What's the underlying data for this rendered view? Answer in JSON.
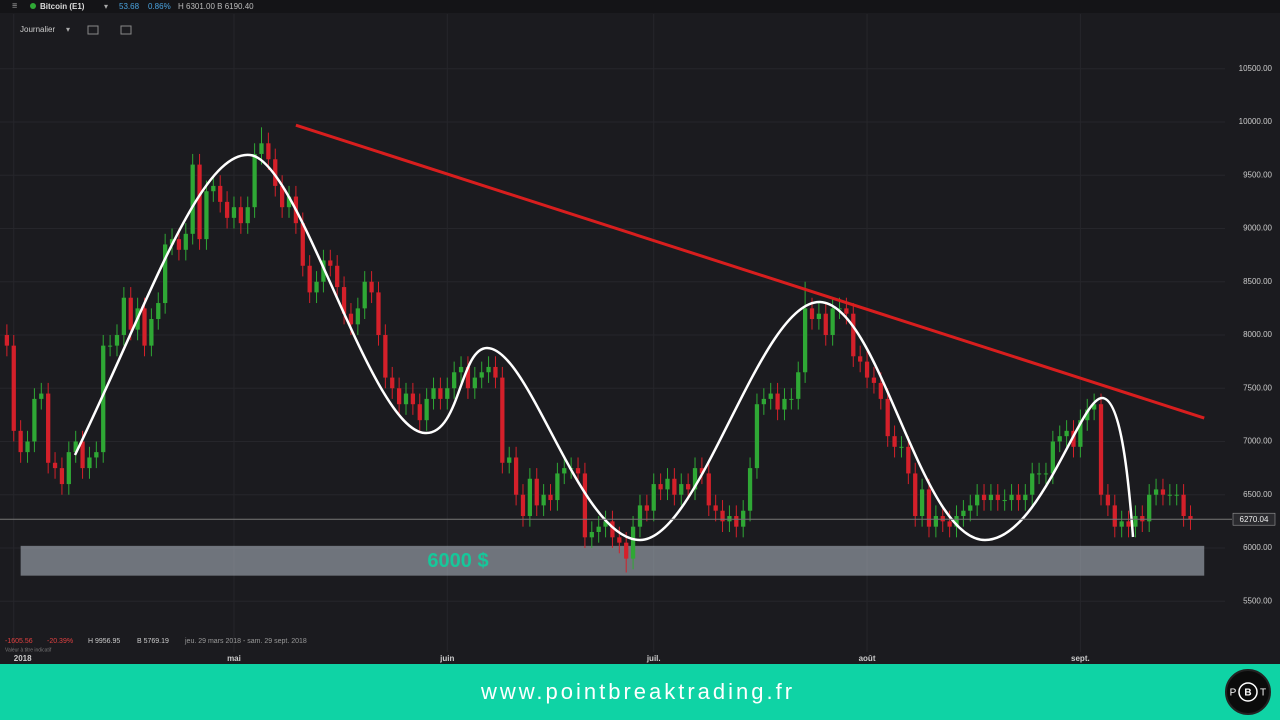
{
  "header": {
    "symbol": "Bitcoin (E1)",
    "change": "53.68",
    "change_pct": "0.86%",
    "hl": "H 6301.00 B 6190.40",
    "interval": "Journalier"
  },
  "stats": {
    "change": "-1605.56",
    "change_pct": "-20.39%",
    "high": "H 9956.95",
    "low": "B 5769.19",
    "range": "jeu. 29 mars 2018 - sam. 29 sept. 2018",
    "note": "Valeur à titre indicatif"
  },
  "footer": {
    "url": "www.pointbreaktrading.fr",
    "logo_left": "P",
    "logo_center": "B",
    "logo_right": "T"
  },
  "chart_data": {
    "type": "candlestick",
    "up_color": "#2fa835",
    "down_color": "#d4202a",
    "grid": true,
    "xlim": [
      87,
      264
    ],
    "xticks": [
      {
        "value": 89,
        "label": "2018"
      },
      {
        "value": 121,
        "label": "mai"
      },
      {
        "value": 152,
        "label": "juin"
      },
      {
        "value": 182,
        "label": "juil."
      },
      {
        "value": 213,
        "label": "août"
      },
      {
        "value": 244,
        "label": "sept."
      }
    ],
    "ylim": [
      5042,
      10770
    ],
    "yticks": [
      {
        "value": 5500,
        "label": "5500.00"
      },
      {
        "value": 6000,
        "label": "6000.00"
      },
      {
        "value": 6500,
        "label": "6500.00"
      },
      {
        "value": 7000,
        "label": "7000.00"
      },
      {
        "value": 7500,
        "label": "7500.00"
      },
      {
        "value": 8000,
        "label": "8000.00"
      },
      {
        "value": 8500,
        "label": "8500.00"
      },
      {
        "value": 9000,
        "label": "9000.00"
      },
      {
        "value": 9500,
        "label": "9500.00"
      },
      {
        "value": 10000,
        "label": "10000.00"
      },
      {
        "value": 10500,
        "label": "10500.00"
      }
    ],
    "last_price": 6270.04,
    "trendline": {
      "x": [
        130,
        262
      ],
      "y": [
        9970,
        7220
      ],
      "color": "#d81e1e"
    },
    "zone": {
      "x": [
        90,
        262
      ],
      "low": 5740,
      "high": 6020,
      "label": "6000 $",
      "color": "#b4bec8"
    },
    "x": [
      88,
      89,
      90,
      91,
      92,
      93,
      94,
      95,
      96,
      97,
      98,
      99,
      100,
      101,
      102,
      103,
      104,
      105,
      106,
      107,
      108,
      109,
      110,
      111,
      112,
      113,
      114,
      115,
      116,
      117,
      118,
      119,
      120,
      121,
      122,
      123,
      124,
      125,
      126,
      127,
      128,
      129,
      130,
      131,
      132,
      133,
      134,
      135,
      136,
      137,
      138,
      139,
      140,
      141,
      142,
      143,
      144,
      145,
      146,
      147,
      148,
      149,
      150,
      151,
      152,
      153,
      154,
      155,
      156,
      157,
      158,
      159,
      160,
      161,
      162,
      163,
      164,
      165,
      166,
      167,
      168,
      169,
      170,
      171,
      172,
      173,
      174,
      175,
      176,
      177,
      178,
      179,
      180,
      181,
      182,
      183,
      184,
      185,
      186,
      187,
      188,
      189,
      190,
      191,
      192,
      193,
      194,
      195,
      196,
      197,
      198,
      199,
      200,
      201,
      202,
      203,
      204,
      205,
      206,
      207,
      208,
      209,
      210,
      211,
      212,
      213,
      214,
      215,
      216,
      217,
      218,
      219,
      220,
      221,
      222,
      223,
      224,
      225,
      226,
      227,
      228,
      229,
      230,
      231,
      232,
      233,
      234,
      235,
      236,
      237,
      238,
      239,
      240,
      241,
      242,
      243,
      244,
      245,
      246,
      247,
      248,
      249,
      250,
      251,
      252,
      253,
      254,
      255,
      256,
      257,
      258,
      259,
      260
    ],
    "open": [
      8000,
      7900,
      7100,
      6900,
      7000,
      7400,
      7450,
      6800,
      6750,
      6600,
      6900,
      7000,
      6750,
      6850,
      6900,
      7900,
      7900,
      8000,
      8350,
      8050,
      8250,
      7900,
      8150,
      8300,
      8850,
      8900,
      8800,
      8950,
      9600,
      8900,
      9350,
      9400,
      9250,
      9100,
      9200,
      9050,
      9200,
      9700,
      9800,
      9650,
      9400,
      9200,
      9300,
      9050,
      8650,
      8400,
      8500,
      8700,
      8650,
      8450,
      8200,
      8100,
      8250,
      8500,
      8400,
      8000,
      7600,
      7500,
      7350,
      7450,
      7350,
      7200,
      7400,
      7500,
      7400,
      7500,
      7650,
      7700,
      7500,
      7600,
      7650,
      7700,
      7600,
      6800,
      6850,
      6500,
      6300,
      6650,
      6400,
      6500,
      6450,
      6700,
      6750,
      6750,
      6700,
      6100,
      6150,
      6200,
      6250,
      6100,
      6050,
      5900,
      6200,
      6400,
      6350,
      6600,
      6550,
      6650,
      6500,
      6600,
      6550,
      6750,
      6700,
      6400,
      6350,
      6250,
      6300,
      6200,
      6350,
      6750,
      7350,
      7400,
      7450,
      7300,
      7400,
      7400,
      7650,
      8250,
      8150,
      8200,
      8000,
      8250,
      8250,
      8200,
      7800,
      7750,
      7600,
      7550,
      7400,
      7050,
      6950,
      6950,
      6700,
      6300,
      6550,
      6200,
      6300,
      6250,
      6200,
      6300,
      6350,
      6400,
      6500,
      6450,
      6500,
      6450,
      6450,
      6500,
      6450,
      6500,
      6700,
      6700,
      6700,
      7000,
      7050,
      7100,
      6950,
      7200,
      7300,
      7350,
      6500,
      6400,
      6200,
      6250,
      6200,
      6300,
      6250,
      6500,
      6550,
      6500,
      6500,
      6500,
      6300
    ],
    "high": [
      8100,
      8000,
      7200,
      7100,
      7500,
      7550,
      7550,
      6900,
      6850,
      7000,
      7100,
      7100,
      6950,
      7000,
      8000,
      8000,
      8100,
      8450,
      8450,
      8350,
      8350,
      8250,
      8400,
      8950,
      9000,
      9000,
      9050,
      9700,
      9700,
      9450,
      9500,
      9500,
      9350,
      9300,
      9300,
      9300,
      9800,
      9950,
      9900,
      9750,
      9500,
      9400,
      9400,
      9150,
      8750,
      8600,
      8800,
      8800,
      8750,
      8550,
      8300,
      8350,
      8600,
      8600,
      8500,
      8100,
      7700,
      7600,
      7550,
      7550,
      7450,
      7500,
      7600,
      7600,
      7600,
      7750,
      7800,
      7800,
      7700,
      7750,
      7800,
      7800,
      7700,
      6950,
      6950,
      6600,
      6750,
      6750,
      6600,
      6600,
      6800,
      6850,
      6850,
      6850,
      6800,
      6250,
      6300,
      6350,
      6350,
      6200,
      6150,
      6300,
      6500,
      6500,
      6700,
      6700,
      6750,
      6750,
      6700,
      6700,
      6850,
      6850,
      6800,
      6500,
      6450,
      6400,
      6400,
      6450,
      6850,
      7450,
      7500,
      7550,
      7550,
      7500,
      7500,
      7750,
      8500,
      8350,
      8300,
      8300,
      8350,
      8350,
      8350,
      8300,
      7900,
      7850,
      7700,
      7650,
      7500,
      7150,
      7050,
      7050,
      6800,
      6650,
      6650,
      6400,
      6400,
      6350,
      6400,
      6450,
      6500,
      6600,
      6600,
      6600,
      6600,
      6550,
      6600,
      6600,
      6600,
      6800,
      6800,
      6800,
      7100,
      7150,
      7200,
      7200,
      7300,
      7400,
      7450,
      7450,
      6600,
      6500,
      6350,
      6350,
      6400,
      6400,
      6600,
      6650,
      6650,
      6600,
      6600,
      6600,
      6400
    ],
    "low": [
      7800,
      7000,
      6800,
      6800,
      6900,
      7300,
      6700,
      6650,
      6500,
      6500,
      6800,
      6650,
      6650,
      6750,
      6800,
      7800,
      7800,
      7900,
      7950,
      7950,
      7800,
      7800,
      8050,
      8200,
      8750,
      8700,
      8700,
      8850,
      8800,
      8800,
      9250,
      9150,
      9000,
      9000,
      8950,
      8950,
      9100,
      9600,
      9550,
      9300,
      9100,
      9100,
      8950,
      8550,
      8300,
      8300,
      8400,
      8550,
      8350,
      8100,
      8000,
      8000,
      8150,
      8300,
      7900,
      7500,
      7400,
      7250,
      7250,
      7250,
      7100,
      7100,
      7300,
      7300,
      7300,
      7400,
      7550,
      7400,
      7400,
      7500,
      7550,
      7500,
      6700,
      6700,
      6400,
      6200,
      6200,
      6300,
      6300,
      6350,
      6350,
      6600,
      6650,
      6600,
      6000,
      6000,
      6050,
      6100,
      6000,
      5950,
      5770,
      5800,
      6100,
      6250,
      6250,
      6450,
      6450,
      6400,
      6400,
      6450,
      6450,
      6600,
      6300,
      6250,
      6150,
      6150,
      6100,
      6100,
      6250,
      6650,
      7250,
      7300,
      7200,
      7200,
      7300,
      7300,
      7550,
      8050,
      8050,
      7900,
      7900,
      8150,
      8100,
      7700,
      7650,
      7500,
      7450,
      7300,
      6950,
      6850,
      6850,
      6600,
      6200,
      6200,
      6100,
      6100,
      6150,
      6100,
      6100,
      6200,
      6250,
      6300,
      6350,
      6350,
      6350,
      6350,
      6350,
      6350,
      6350,
      6400,
      6600,
      6600,
      6600,
      6900,
      6950,
      6850,
      6850,
      7100,
      7200,
      6400,
      6300,
      6100,
      6100,
      6100,
      6100,
      6150,
      6150,
      6400,
      6400,
      6400,
      6400,
      6200,
      6170
    ],
    "close": [
      7900,
      7100,
      6900,
      7000,
      7400,
      7450,
      6800,
      6750,
      6600,
      6900,
      7000,
      6750,
      6850,
      6900,
      7900,
      7900,
      8000,
      8350,
      8050,
      8250,
      7900,
      8150,
      8300,
      8850,
      8900,
      8800,
      8950,
      9600,
      8900,
      9350,
      9400,
      9250,
      9100,
      9200,
      9050,
      9200,
      9700,
      9800,
      9650,
      9400,
      9200,
      9300,
      9050,
      8650,
      8400,
      8500,
      8700,
      8650,
      8450,
      8200,
      8100,
      8250,
      8500,
      8400,
      8000,
      7600,
      7500,
      7350,
      7450,
      7350,
      7200,
      7400,
      7500,
      7400,
      7500,
      7650,
      7700,
      7500,
      7600,
      7650,
      7700,
      7600,
      6800,
      6850,
      6500,
      6300,
      6650,
      6400,
      6500,
      6450,
      6700,
      6750,
      6750,
      6700,
      6100,
      6150,
      6200,
      6250,
      6100,
      6050,
      5900,
      6200,
      6400,
      6350,
      6600,
      6550,
      6650,
      6500,
      6600,
      6550,
      6750,
      6700,
      6400,
      6350,
      6250,
      6300,
      6200,
      6350,
      6750,
      7350,
      7400,
      7450,
      7300,
      7400,
      7400,
      7650,
      8250,
      8150,
      8200,
      8000,
      8250,
      8250,
      8200,
      7800,
      7750,
      7600,
      7550,
      7400,
      7050,
      6950,
      6950,
      6700,
      6300,
      6550,
      6200,
      6300,
      6250,
      6200,
      6300,
      6350,
      6400,
      6500,
      6450,
      6500,
      6450,
      6450,
      6500,
      6450,
      6500,
      6700,
      6700,
      6700,
      7000,
      7050,
      7100,
      6950,
      7200,
      7300,
      7350,
      6500,
      6400,
      6200,
      6250,
      6200,
      6300,
      6250,
      6500,
      6550,
      6500,
      6500,
      6500,
      6300,
      6270
    ]
  }
}
